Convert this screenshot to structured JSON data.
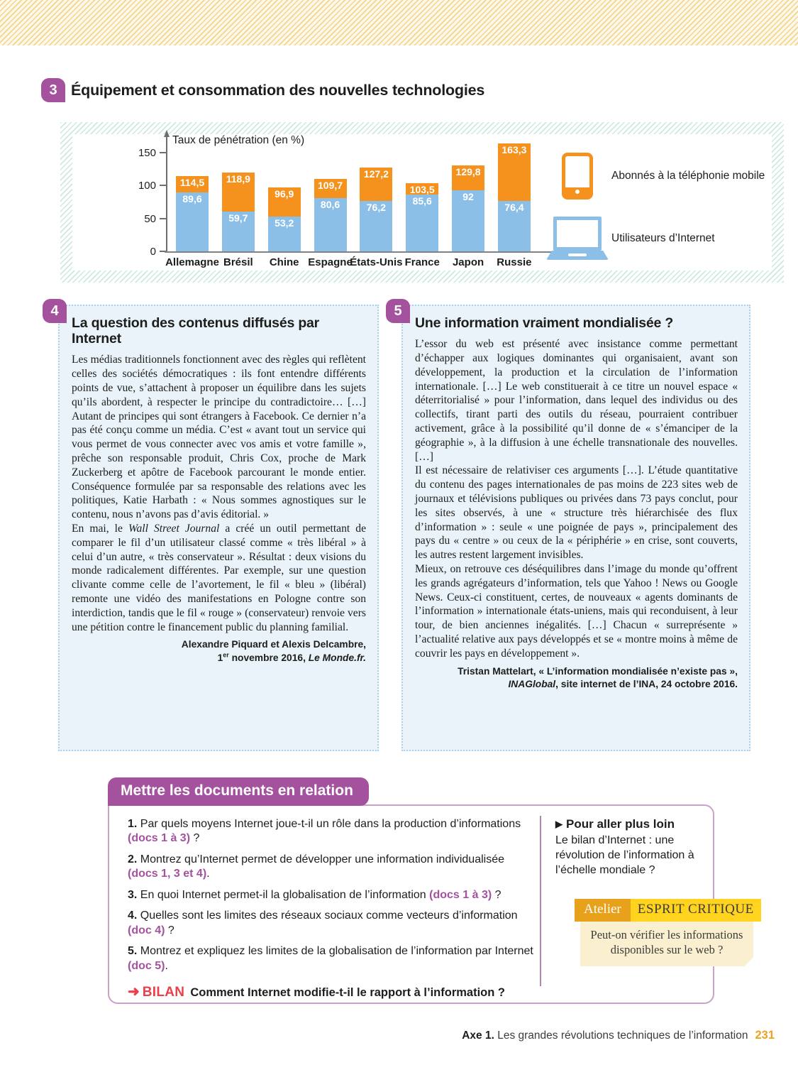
{
  "doc3": {
    "number": "3",
    "title": "Équipement et consommation des nouvelles technologies"
  },
  "chart_data": {
    "type": "bar",
    "stacked": true,
    "ylabel": "Taux de pénétration (en %)",
    "categories": [
      "Allemagne",
      "Brésil",
      "Chine",
      "Espagne",
      "États-Unis",
      "France",
      "Japon",
      "Russie"
    ],
    "series": [
      {
        "name": "Abonnés à la téléphonie mobile",
        "color": "#f5921e",
        "values": [
          114.5,
          118.9,
          96.9,
          109.7,
          127.2,
          103.5,
          129.8,
          163.3
        ],
        "labels": [
          "114,5",
          "118,9",
          "96,9",
          "109,7",
          "127,2",
          "103,5",
          "129,8",
          "163,3"
        ]
      },
      {
        "name": "Utilisateurs d’Internet",
        "color": "#8cbfe8",
        "values": [
          89.6,
          59.7,
          53.2,
          80.6,
          76.2,
          85.6,
          92,
          76.4
        ],
        "labels": [
          "89,6",
          "59,7",
          "53,2",
          "80,6",
          "76,2",
          "85,6",
          "92",
          "76,4"
        ]
      }
    ],
    "yticks": [
      0,
      50,
      100,
      150
    ],
    "ylim": [
      0,
      175
    ],
    "grid": false,
    "legend_position": "right",
    "note": "mobile series values are bar totals; internet series is the blue lower segment"
  },
  "doc4": {
    "number": "4",
    "title": "La question des contenus diffusés par Internet",
    "paragraphs": [
      [
        [
          "Les médias traditionnels fonctionnent avec des règles qui reflètent celles des sociétés démocratiques : ils font entendre différents points de vue, s’attachent à proposer un équilibre dans les sujets qu’ils abordent, à respecter le principe du contradictoire… […] Autant de principes qui sont étrangers à Facebook. Ce dernier n’a pas été conçu comme un média. C’est « avant tout un service qui vous permet de vous connecter avec vos amis et votre famille », prêche son responsable produit, Chris Cox, proche de Mark Zuckerberg et apôtre de Facebook parcourant le monde entier. Conséquence formulée par sa responsable des relations avec les politiques, Katie Harbath : « Nous sommes agnostiques sur le contenu, nous n’avons pas d’avis éditorial. »",
          "n"
        ]
      ],
      [
        [
          "En mai, le ",
          "n"
        ],
        [
          "Wall Street Journal",
          "i"
        ],
        [
          " a créé un outil permettant de comparer le fil d’un utilisateur classé comme « très libéral » à celui d’un autre, « très conservateur ». Résultat : deux visions du monde radicalement différentes. Par exemple, sur une question clivante comme celle de l’avortement, le fil « bleu » (libéral) remonte une vidéo des manifestations en Pologne contre son interdiction, tandis que le fil « rouge » (conservateur) renvoie vers une pétition contre le financement public du planning familial.",
          "n"
        ]
      ]
    ],
    "citation": [
      [
        [
          "Alexandre Piquard et Alexis Delcambre,",
          "n"
        ]
      ],
      [
        [
          "1",
          "n"
        ],
        [
          "er",
          "sup"
        ],
        [
          " novembre 2016, ",
          "n"
        ],
        [
          "Le Monde.fr.",
          "i"
        ]
      ]
    ]
  },
  "doc5": {
    "number": "5",
    "title": "Une information vraiment mondialisée ?",
    "paragraphs": [
      [
        [
          "L’essor du web est présenté avec insistance comme permettant d’échapper aux logiques dominantes qui organisaient, avant son développement, la production et la circulation de l’information internationale. […] Le web constituerait à ce titre un nouvel espace « déterritorialisé » pour l’information, dans lequel des individus ou des collectifs, tirant parti des outils du réseau, pourraient contribuer activement, grâce à la possibilité qu’il donne de « s’émanciper de la géographie », à la diffusion à une échelle transnationale des nouvelles. […]",
          "n"
        ]
      ],
      [
        [
          "Il est nécessaire de relativiser ces arguments […]. L’étude quantitative du contenu des pages internationales de pas moins de 223 sites web de journaux et télévisions publiques ou privées dans 73 pays conclut, pour les sites observés, à une « structure très hiérarchisée des flux d’information » : seule « une poignée de pays », principalement des pays du « centre » ou ceux de la « périphérie » en crise, sont couverts, les autres restent largement invisibles.",
          "n"
        ]
      ],
      [
        [
          "Mieux, on retrouve ces déséquilibres dans l’image du monde qu’offrent les grands agrégateurs d’information, tels que Yahoo ! News ou Google News. Ceux-ci constituent, certes, de nouveaux « agents dominants de l’information » internationale états-uniens, mais qui reconduisent, à leur tour, de bien anciennes inégalités. […] Chacun « surreprésente » l’actualité relative aux pays développés et se « montre moins à même de couvrir les pays en développement ».",
          "n"
        ]
      ]
    ],
    "citation": [
      [
        [
          "Tristan Mattelart, « L’information mondialisée n’existe pas »,",
          "n"
        ]
      ],
      [
        [
          "INAGlobal",
          "i"
        ],
        [
          ", site internet de l’INA, 24 octobre 2016.",
          "n"
        ]
      ]
    ]
  },
  "questions": {
    "header": "Mettre les documents en relation",
    "items": [
      {
        "num": "1.",
        "parts": [
          [
            "Par quels moyens Internet joue-t-il un rôle dans la production d’informations ",
            "n"
          ],
          [
            "(docs 1 à 3)",
            "r"
          ],
          [
            " ?",
            "n"
          ]
        ]
      },
      {
        "num": "2.",
        "parts": [
          [
            "Montrez qu’Internet permet de développer une information individualisée ",
            "n"
          ],
          [
            "(docs 1, 3 et 4)",
            "r"
          ],
          [
            ".",
            "n"
          ]
        ]
      },
      {
        "num": "3.",
        "parts": [
          [
            "En quoi Internet permet-il la globalisation de l’information ",
            "n"
          ],
          [
            "(docs 1 à 3)",
            "r"
          ],
          [
            " ?",
            "n"
          ]
        ]
      },
      {
        "num": "4.",
        "parts": [
          [
            "Quelles sont les limites des réseaux sociaux comme vecteurs d’information ",
            "n"
          ],
          [
            "(doc 4)",
            "r"
          ],
          [
            " ?",
            "n"
          ]
        ]
      },
      {
        "num": "5.",
        "parts": [
          [
            "Montrez et expliquez les limites de la globalisation de l’information par Internet ",
            "n"
          ],
          [
            "(doc 5)",
            "r"
          ],
          [
            ".",
            "n"
          ]
        ]
      }
    ],
    "bilan": {
      "arrow": "➜",
      "label": "BILAN",
      "text": "Comment Internet modifie-t-il le rapport à l’information ?"
    }
  },
  "aller_plus_loin": {
    "marker": "▶",
    "title": "Pour aller plus loin",
    "text": "Le bilan d’Internet : une révolution de l’information à l’échelle mondiale ?"
  },
  "atelier": {
    "tab": "Atelier",
    "title": "ESPRIT CRITIQUE",
    "question": "Peut-on vérifier les informations disponibles sur le web ?"
  },
  "footer": {
    "axe_label": "Axe 1.",
    "text": " Les grandes révolutions techniques de l’information",
    "page_number": "231"
  }
}
